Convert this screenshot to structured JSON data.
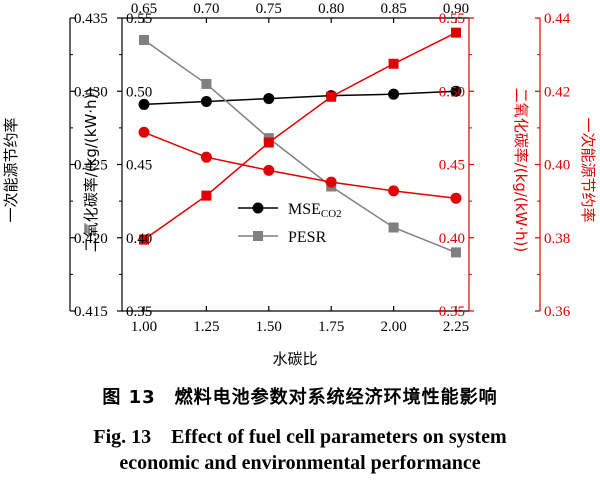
{
  "chart_data": {
    "type": "line",
    "xlabel": "水碳比",
    "x_bottom": [
      1.0,
      1.25,
      1.5,
      1.75,
      2.0,
      2.25
    ],
    "x_bottom_ticks": [
      "1.00",
      "1.25",
      "1.50",
      "1.75",
      "2.00",
      "2.25"
    ],
    "xlim_bottom": [
      1.0,
      2.25
    ],
    "x_top_ticks": [
      "0.65",
      "0.70",
      "0.75",
      "0.80",
      "0.85",
      "0.90"
    ],
    "xlim_top": [
      0.65,
      0.9
    ],
    "y_outer_left": {
      "label": "一次能源节约率",
      "ticks": [
        "0.415",
        "0.420",
        "0.425",
        "0.430",
        "0.435"
      ],
      "lim": [
        0.415,
        0.435
      ]
    },
    "y_inner_left": {
      "label": "二氧化碳率/(kg/(kW·h))",
      "ticks": [
        "0.35",
        "0.40",
        "0.45",
        "0.50",
        "0.55"
      ],
      "lim": [
        0.35,
        0.55
      ]
    },
    "y_inner_right": {
      "label": "二氧化碳率/(kg/(kW·h))",
      "color": "#e00000",
      "ticks": [
        "0.35",
        "0.40",
        "0.45",
        "0.50",
        "0.55"
      ],
      "lim": [
        0.35,
        0.55
      ]
    },
    "y_outer_right": {
      "label": "一次能源节约率",
      "color": "#e00000",
      "ticks": [
        "0.36",
        "0.38",
        "0.40",
        "0.42",
        "0.44"
      ],
      "lim": [
        0.36,
        0.44
      ]
    },
    "legend_position": "center-left",
    "series": [
      {
        "name": "MSE",
        "name_sub": "CO2",
        "axis": "x_bottom/y_inner_left",
        "color": "#000000",
        "marker": "circle",
        "x": [
          1.0,
          1.25,
          1.5,
          1.75,
          2.0,
          2.25
        ],
        "y": [
          0.491,
          0.493,
          0.495,
          0.497,
          0.498,
          0.5
        ]
      },
      {
        "name": "PESR",
        "axis": "x_bottom/y_outer_left",
        "color": "#808080",
        "marker": "square",
        "x": [
          1.0,
          1.25,
          1.5,
          1.75,
          2.0,
          2.25
        ],
        "y": [
          0.4335,
          0.4305,
          0.4268,
          0.4235,
          0.4207,
          0.419
        ]
      },
      {
        "axis": "x_top/y_inner_right",
        "color": "#e00000",
        "marker": "circle",
        "x": [
          0.65,
          0.7,
          0.75,
          0.8,
          0.85,
          0.9
        ],
        "y": [
          0.472,
          0.455,
          0.446,
          0.438,
          0.432,
          0.427
        ]
      },
      {
        "axis": "x_top/y_outer_right",
        "color": "#e00000",
        "marker": "square",
        "x": [
          0.65,
          0.7,
          0.75,
          0.8,
          0.85,
          0.9
        ],
        "y": [
          0.3795,
          0.3915,
          0.406,
          0.4185,
          0.4275,
          0.436
        ]
      }
    ]
  },
  "caption": {
    "cn": "图 13　燃料电池参数对系统经济环境性能影响",
    "en_line1": "Fig. 13　Effect of fuel cell parameters on system",
    "en_line2": "economic and environmental performance"
  }
}
